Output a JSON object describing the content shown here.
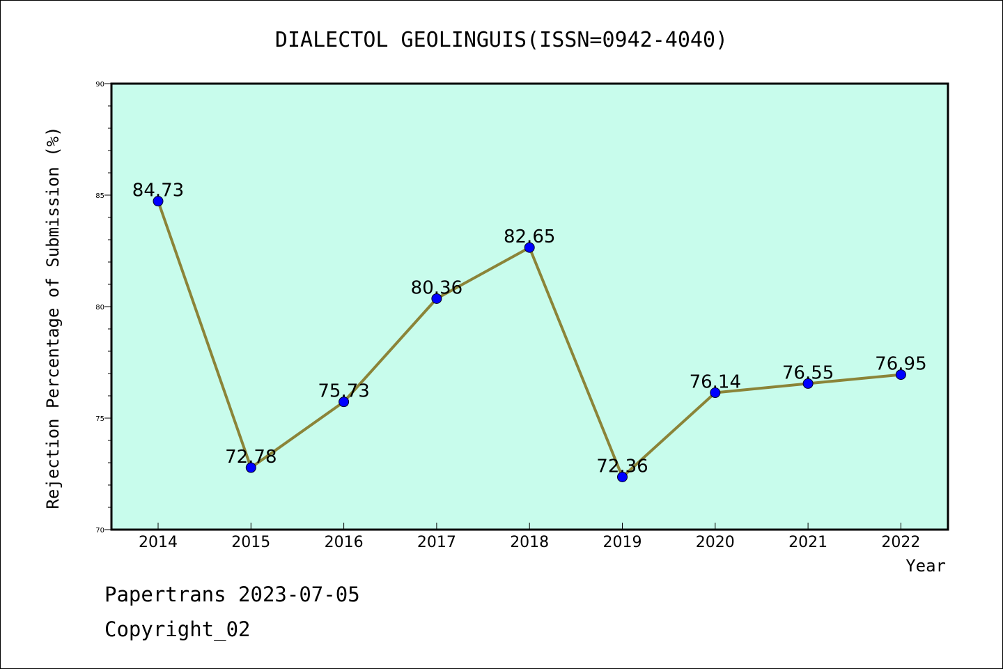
{
  "chart_data": {
    "type": "line",
    "title": "DIALECTOL GEOLINGUIS(ISSN=0942-4040)",
    "xlabel": "Year",
    "ylabel": "Rejection Percentage of Submission (%)",
    "categories": [
      "2014",
      "2015",
      "2016",
      "2017",
      "2018",
      "2019",
      "2020",
      "2021",
      "2022"
    ],
    "values": [
      84.73,
      72.78,
      75.73,
      80.36,
      82.65,
      72.36,
      76.14,
      76.55,
      76.95
    ],
    "data_labels": [
      "84.73",
      "72.78",
      "75.73",
      "80.36",
      "82.65",
      "72.36",
      "76.14",
      "76.55",
      "76.95"
    ],
    "ylim": [
      70,
      90
    ],
    "yticks": [
      "70",
      "75",
      "80",
      "85",
      "90"
    ],
    "grid": false,
    "colors": {
      "plot_background": "#c8fcec",
      "line": "#8b8438",
      "marker": "#0000ff"
    }
  },
  "footer": {
    "line1": "Papertrans 2023-07-05",
    "line2": "Copyright_02"
  }
}
